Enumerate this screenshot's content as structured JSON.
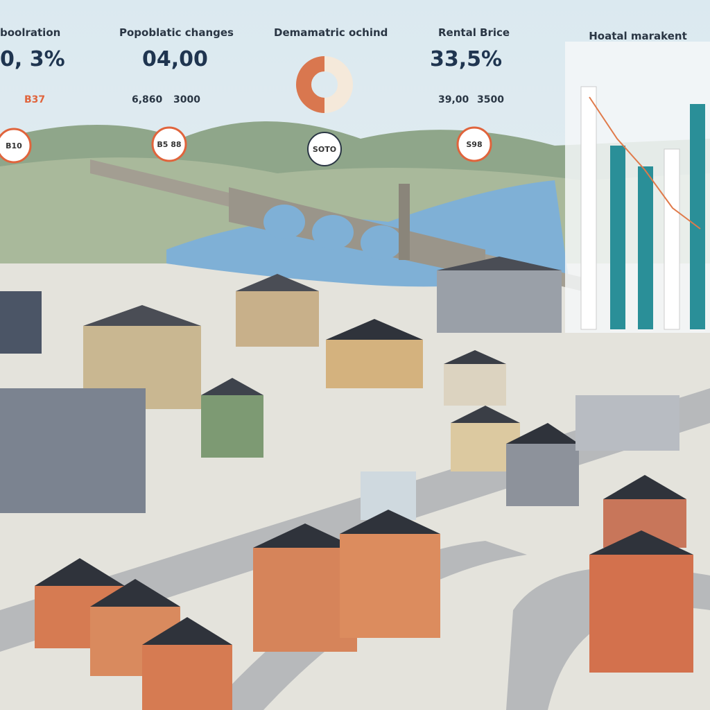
{
  "panels": [
    {
      "title": "boolration",
      "value": "0, 3%",
      "note": "B37"
    },
    {
      "title": "Popoblatic changes",
      "value": "04,00",
      "note_left": "6,860",
      "note_right": "3000"
    },
    {
      "title": "Demamatric ochind"
    },
    {
      "title": "Rental Brice",
      "value": "33,5%",
      "note_left": "39,00",
      "note_right": "3500"
    },
    {
      "title": "Hoatal marakent"
    }
  ],
  "badges": [
    "B10",
    "B5 88",
    "SOTO",
    "S98"
  ]
}
